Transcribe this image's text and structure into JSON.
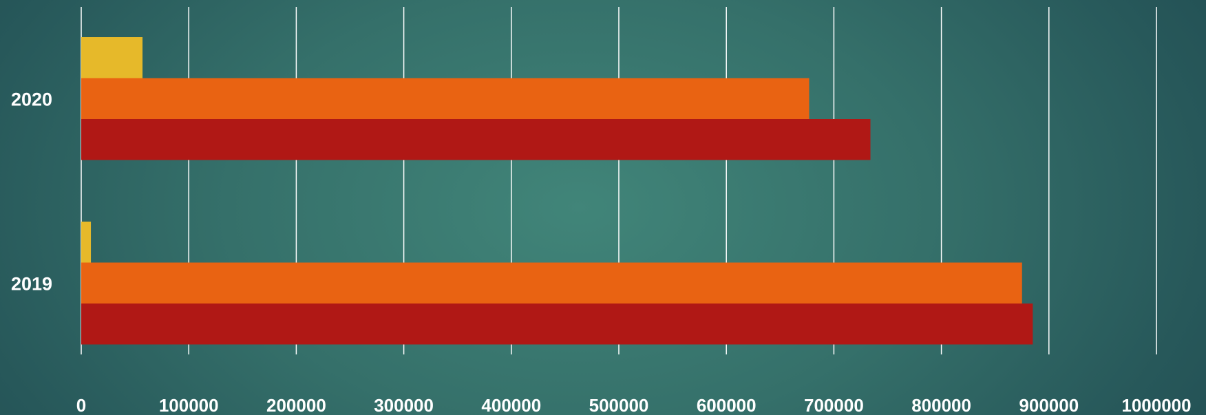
{
  "chart_data": {
    "type": "bar",
    "orientation": "horizontal",
    "categories": [
      "2020",
      "2019"
    ],
    "series": [
      {
        "values": [
          57000,
          9000
        ],
        "color": "#E6B92A"
      },
      {
        "values": [
          677000,
          875000
        ],
        "color": "#E96312"
      },
      {
        "values": [
          734000,
          885000
        ],
        "color": "#B01815"
      }
    ],
    "x_ticks": [
      "0",
      "100000",
      "200000",
      "300000",
      "400000",
      "500000",
      "600000",
      "700000",
      "800000",
      "900000",
      "1000000"
    ],
    "xlim": [
      0,
      1000000
    ],
    "grid": true,
    "gridline_color": "#ffffff",
    "title": "",
    "xlabel": "",
    "ylabel": ""
  }
}
